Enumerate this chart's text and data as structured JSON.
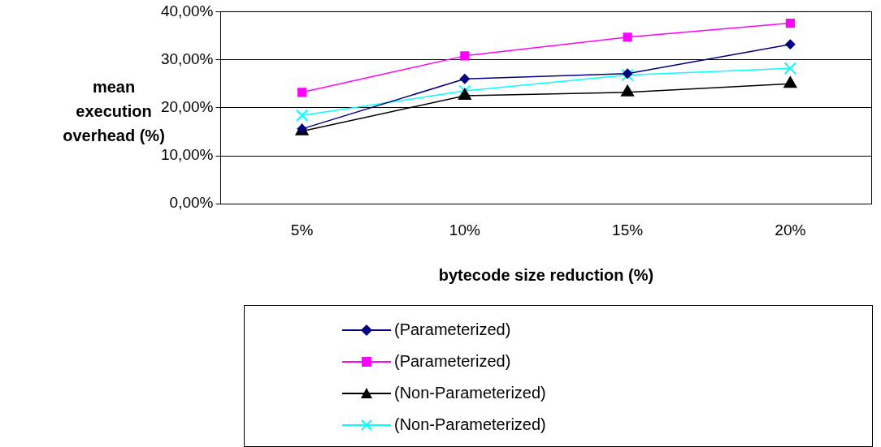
{
  "chart_data": {
    "type": "line",
    "xlabel": "bytecode size reduction (%)",
    "ylabel": "mean execution overhead (%)",
    "categories": [
      "5%",
      "10%",
      "15%",
      "20%"
    ],
    "series": [
      {
        "name": "(Parameterized)",
        "color": "#000080",
        "marker": "diamond",
        "values": [
          15.6,
          26.0,
          27.1,
          33.2
        ]
      },
      {
        "name": "(Parameterized)",
        "color": "#ff00ff",
        "marker": "square",
        "values": [
          23.2,
          30.8,
          34.7,
          37.6
        ]
      },
      {
        "name": "(Non-Parameterized)",
        "color": "#000000",
        "marker": "triangle",
        "values": [
          15.1,
          22.5,
          23.2,
          25.0
        ]
      },
      {
        "name": "(Non-Parameterized)",
        "color": "#00ffff",
        "marker": "cross",
        "values": [
          18.4,
          23.5,
          26.8,
          28.2
        ]
      }
    ],
    "ylim": [
      0,
      40
    ],
    "yticks": [
      {
        "value": 0,
        "label": "0,00%"
      },
      {
        "value": 10,
        "label": "10,00%"
      },
      {
        "value": 20,
        "label": "20,00%"
      },
      {
        "value": 30,
        "label": "30,00%"
      },
      {
        "value": 40,
        "label": "40,00%"
      }
    ],
    "grid": "y",
    "legend": "bottom",
    "line_style": "solid"
  }
}
